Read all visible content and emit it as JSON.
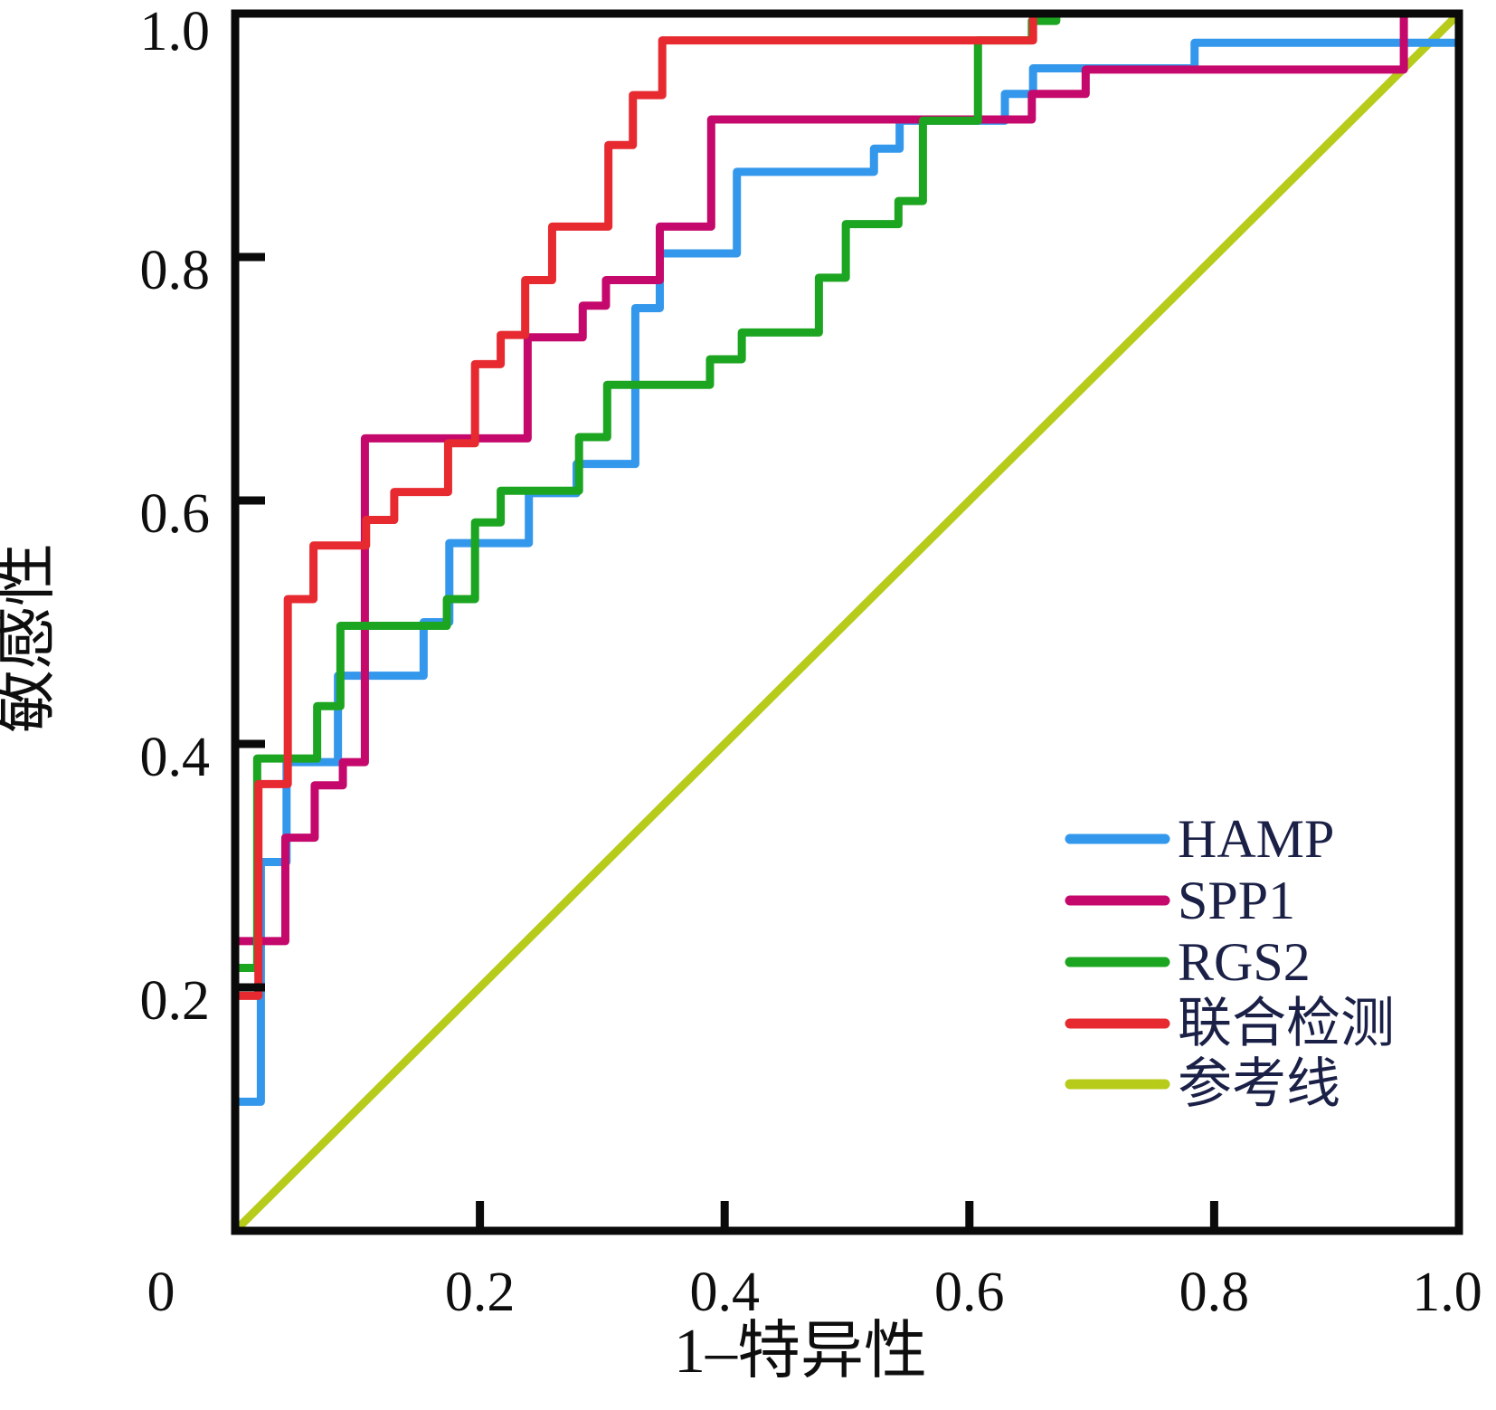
{
  "chart_data": {
    "type": "line",
    "subtype": "roc-step-curves",
    "title": "",
    "xlabel": "1–特异性",
    "ylabel": "敏感性",
    "xlim": [
      0,
      1
    ],
    "ylim": [
      0,
      1
    ],
    "grid": false,
    "frame": "full-box",
    "frame_color": "#0a0a0a",
    "text_color": "#0e0e0e",
    "legend_text_color": "#1b2047",
    "legend_position": "lower-right",
    "x_ticks": [
      {
        "value": 0,
        "label": "0"
      },
      {
        "value": 0.2,
        "label": "0.2"
      },
      {
        "value": 0.4,
        "label": "0.4"
      },
      {
        "value": 0.6,
        "label": "0.6"
      },
      {
        "value": 0.8,
        "label": "0.8"
      },
      {
        "value": 1,
        "label": "1.0"
      }
    ],
    "y_ticks": [
      {
        "value": 0.2,
        "label": "0.2"
      },
      {
        "value": 0.4,
        "label": "0.4"
      },
      {
        "value": 0.6,
        "label": "0.6"
      },
      {
        "value": 0.8,
        "label": "0.8"
      },
      {
        "value": 1,
        "label": "1.0"
      }
    ],
    "series": [
      {
        "name": "HAMP",
        "color": "#3397ec",
        "role": "roc-curve",
        "points": [
          [
            0,
            0
          ],
          [
            0,
            0.106
          ],
          [
            0.021,
            0.106
          ],
          [
            0.021,
            0.303
          ],
          [
            0.042,
            0.303
          ],
          [
            0.042,
            0.385
          ],
          [
            0.084,
            0.385
          ],
          [
            0.084,
            0.456
          ],
          [
            0.154,
            0.456
          ],
          [
            0.154,
            0.5
          ],
          [
            0.175,
            0.5
          ],
          [
            0.175,
            0.565
          ],
          [
            0.24,
            0.565
          ],
          [
            0.24,
            0.606
          ],
          [
            0.279,
            0.606
          ],
          [
            0.279,
            0.63
          ],
          [
            0.327,
            0.63
          ],
          [
            0.327,
            0.758
          ],
          [
            0.347,
            0.758
          ],
          [
            0.347,
            0.803
          ],
          [
            0.41,
            0.803
          ],
          [
            0.41,
            0.87
          ],
          [
            0.522,
            0.87
          ],
          [
            0.522,
            0.889
          ],
          [
            0.543,
            0.889
          ],
          [
            0.543,
            0.912
          ],
          [
            0.629,
            0.912
          ],
          [
            0.629,
            0.934
          ],
          [
            0.652,
            0.934
          ],
          [
            0.652,
            0.955
          ],
          [
            0.784,
            0.955
          ],
          [
            0.784,
            0.976
          ],
          [
            1,
            0.976
          ],
          [
            1,
            1
          ]
        ]
      },
      {
        "name": "SPP1",
        "color": "#c5086c",
        "role": "roc-curve",
        "points": [
          [
            0,
            0
          ],
          [
            0,
            0.238
          ],
          [
            0.041,
            0.238
          ],
          [
            0.041,
            0.323
          ],
          [
            0.065,
            0.323
          ],
          [
            0.065,
            0.366
          ],
          [
            0.088,
            0.366
          ],
          [
            0.088,
            0.385
          ],
          [
            0.106,
            0.385
          ],
          [
            0.106,
            0.651
          ],
          [
            0.239,
            0.651
          ],
          [
            0.239,
            0.734
          ],
          [
            0.284,
            0.734
          ],
          [
            0.284,
            0.76
          ],
          [
            0.303,
            0.76
          ],
          [
            0.303,
            0.781
          ],
          [
            0.347,
            0.781
          ],
          [
            0.347,
            0.825
          ],
          [
            0.389,
            0.825
          ],
          [
            0.389,
            0.913
          ],
          [
            0.651,
            0.913
          ],
          [
            0.651,
            0.934
          ],
          [
            0.695,
            0.934
          ],
          [
            0.695,
            0.954
          ],
          [
            0.955,
            0.954
          ],
          [
            0.955,
            1
          ],
          [
            1,
            1
          ]
        ]
      },
      {
        "name": "RGS2",
        "color": "#1ca520",
        "role": "roc-curve",
        "points": [
          [
            0,
            0
          ],
          [
            0,
            0.216
          ],
          [
            0.018,
            0.216
          ],
          [
            0.018,
            0.388
          ],
          [
            0.067,
            0.388
          ],
          [
            0.067,
            0.431
          ],
          [
            0.086,
            0.431
          ],
          [
            0.086,
            0.497
          ],
          [
            0.173,
            0.497
          ],
          [
            0.173,
            0.519
          ],
          [
            0.196,
            0.519
          ],
          [
            0.196,
            0.582
          ],
          [
            0.217,
            0.582
          ],
          [
            0.217,
            0.608
          ],
          [
            0.281,
            0.608
          ],
          [
            0.281,
            0.652
          ],
          [
            0.304,
            0.652
          ],
          [
            0.304,
            0.695
          ],
          [
            0.388,
            0.695
          ],
          [
            0.388,
            0.716
          ],
          [
            0.414,
            0.716
          ],
          [
            0.414,
            0.738
          ],
          [
            0.477,
            0.738
          ],
          [
            0.477,
            0.783
          ],
          [
            0.499,
            0.783
          ],
          [
            0.499,
            0.827
          ],
          [
            0.542,
            0.827
          ],
          [
            0.542,
            0.846
          ],
          [
            0.562,
            0.846
          ],
          [
            0.562,
            0.912
          ],
          [
            0.607,
            0.912
          ],
          [
            0.607,
            0.978
          ],
          [
            0.651,
            0.978
          ],
          [
            0.651,
            0.994
          ],
          [
            0.671,
            0.994
          ],
          [
            0.671,
            1
          ],
          [
            1,
            1
          ]
        ]
      },
      {
        "name": "联合检测",
        "color": "#e62a30",
        "role": "roc-curve",
        "points": [
          [
            0,
            0
          ],
          [
            0,
            0.193
          ],
          [
            0.019,
            0.193
          ],
          [
            0.019,
            0.367
          ],
          [
            0.043,
            0.367
          ],
          [
            0.043,
            0.519
          ],
          [
            0.064,
            0.519
          ],
          [
            0.064,
            0.563
          ],
          [
            0.107,
            0.563
          ],
          [
            0.107,
            0.584
          ],
          [
            0.13,
            0.584
          ],
          [
            0.13,
            0.607
          ],
          [
            0.174,
            0.607
          ],
          [
            0.174,
            0.647
          ],
          [
            0.196,
            0.647
          ],
          [
            0.196,
            0.712
          ],
          [
            0.217,
            0.712
          ],
          [
            0.217,
            0.736
          ],
          [
            0.237,
            0.736
          ],
          [
            0.237,
            0.781
          ],
          [
            0.259,
            0.781
          ],
          [
            0.259,
            0.825
          ],
          [
            0.305,
            0.825
          ],
          [
            0.305,
            0.892
          ],
          [
            0.325,
            0.892
          ],
          [
            0.325,
            0.933
          ],
          [
            0.349,
            0.933
          ],
          [
            0.349,
            0.978
          ],
          [
            0.652,
            0.978
          ],
          [
            0.652,
            1
          ],
          [
            1,
            1
          ]
        ]
      },
      {
        "name": "参考线",
        "color": "#b7cb1b",
        "role": "reference-line",
        "points": [
          [
            0,
            0
          ],
          [
            1,
            1
          ]
        ]
      }
    ],
    "legend": {
      "items": [
        "HAMP",
        "SPP1",
        "RGS2",
        "联合检测",
        "参考线"
      ]
    }
  }
}
